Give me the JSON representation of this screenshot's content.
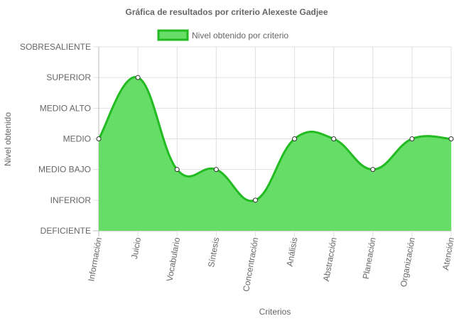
{
  "chart_data": {
    "type": "area",
    "title": "Gráfica de resultados por criterio Alexeste Gadjee",
    "xlabel": "Criterios",
    "ylabel": "Nivel obtenido",
    "categories": [
      "Información",
      "Juicio",
      "Vocabulario",
      "Síntesis",
      "Concentración",
      "Análisis",
      "Abstracción",
      "Planeación",
      "Organización",
      "Atención"
    ],
    "y_levels": [
      "DEFICIENTE",
      "INFERIOR",
      "MEDIO BAJO",
      "MEDIO",
      "MEDIO ALTO",
      "SUPERIOR",
      "SOBRESALIENTE"
    ],
    "ylim": [
      0,
      6
    ],
    "grid": true,
    "legend_position": "top",
    "series": [
      {
        "name": "Nivel obtenido por criterio",
        "values": [
          3,
          5,
          2,
          2,
          1,
          3,
          3,
          2,
          3,
          3
        ],
        "fill_color": "#66dd66",
        "line_color": "#22bb22"
      }
    ]
  }
}
